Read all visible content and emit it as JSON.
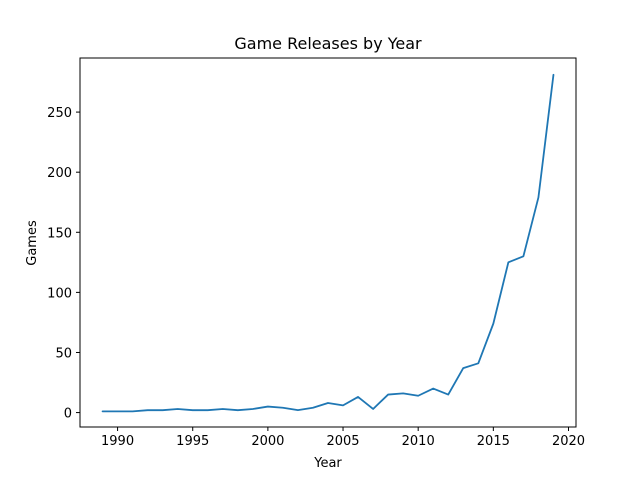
{
  "chart_data": {
    "type": "line",
    "title": "Game Releases by Year",
    "xlabel": "Year",
    "ylabel": "Games",
    "xlim": [
      1987.5,
      2020.5
    ],
    "ylim": [
      -12,
      295
    ],
    "xticks": [
      1990,
      1995,
      2000,
      2005,
      2010,
      2015,
      2020
    ],
    "yticks": [
      0,
      50,
      100,
      150,
      200,
      250
    ],
    "grid": false,
    "series": [
      {
        "name": "Games",
        "color": "#1f77b4",
        "x": [
          1989,
          1990,
          1991,
          1992,
          1993,
          1994,
          1995,
          1996,
          1997,
          1998,
          1999,
          2000,
          2001,
          2002,
          2003,
          2004,
          2005,
          2006,
          2007,
          2008,
          2009,
          2010,
          2011,
          2012,
          2013,
          2014,
          2015,
          2016,
          2017,
          2018,
          2019
        ],
        "y": [
          1,
          1,
          1,
          2,
          2,
          3,
          2,
          2,
          3,
          2,
          3,
          5,
          4,
          2,
          4,
          8,
          6,
          13,
          3,
          15,
          16,
          14,
          20,
          15,
          37,
          41,
          74,
          125,
          130,
          179,
          281
        ]
      }
    ]
  }
}
